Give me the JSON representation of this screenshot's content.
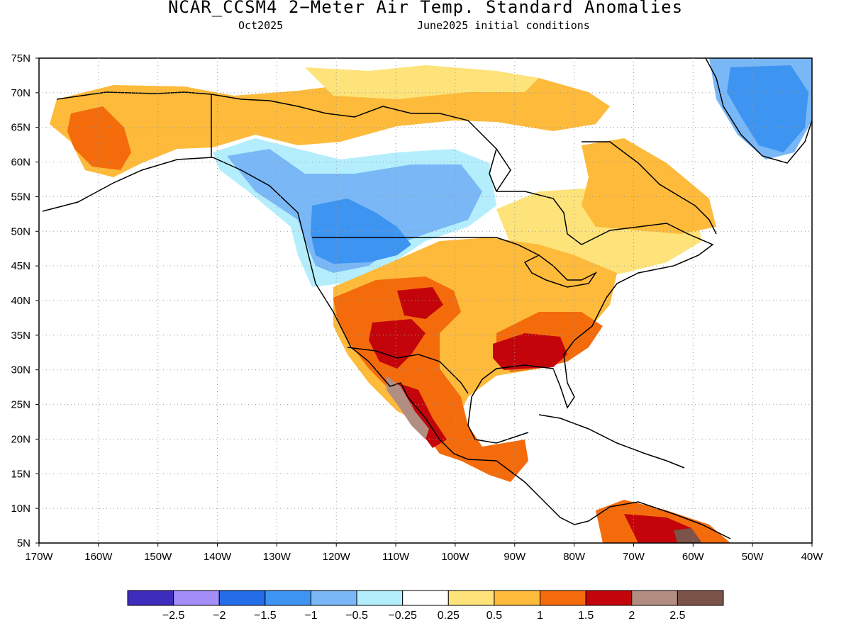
{
  "header": {
    "title": "NCAR_CCSM4 2−Meter Air Temp. Standard Anomalies",
    "valid_month": "Oct2025",
    "initial_conditions": "June2025 initial conditions"
  },
  "map": {
    "lon_range": [
      -170,
      -40
    ],
    "lat_range": [
      5,
      75
    ],
    "grid_lines": "dotted",
    "lat_ticks": [
      "5N",
      "10N",
      "15N",
      "20N",
      "25N",
      "30N",
      "35N",
      "40N",
      "45N",
      "50N",
      "55N",
      "60N",
      "65N",
      "70N",
      "75N"
    ],
    "lon_ticks": [
      "170W",
      "160W",
      "150W",
      "140W",
      "130W",
      "120W",
      "110W",
      "100W",
      "90W",
      "80W",
      "70W",
      "60W",
      "50W",
      "40W"
    ],
    "anomaly_regions": [
      {
        "name": "alaska-warm",
        "level": "0.5–1",
        "color": "#fdba3b"
      },
      {
        "name": "western-alaska-warmer",
        "level": "1–1.5",
        "color": "#f46b0c"
      },
      {
        "name": "canadian-arctic-warm",
        "level": "0.5–1",
        "color": "#fdba3b"
      },
      {
        "name": "western-canada-cool",
        "level": "-1–-0.5",
        "color": "#79b7f6"
      },
      {
        "name": "pacific-northwest-cooler",
        "level": "-1.5–-1",
        "color": "#3e94f1"
      },
      {
        "name": "greenland-cool",
        "level": "-1.5–-1",
        "color": "#3e94f1"
      },
      {
        "name": "eastern-canada-warm",
        "level": "0.5–1",
        "color": "#fdba3b"
      },
      {
        "name": "us-southwest-mexico-warm",
        "level": "1–1.5",
        "color": "#f46b0c"
      },
      {
        "name": "southeast-us-warmest",
        "level": "1.5–2",
        "color": "#c3040b"
      },
      {
        "name": "baja-extreme",
        "level": "2–2.5",
        "color": "#b28d82"
      }
    ]
  },
  "colorbar": {
    "colors": [
      "#3e2cbd",
      "#a38df7",
      "#246de9",
      "#3e94f1",
      "#79b7f6",
      "#b4eefd",
      "#ffffff",
      "#fde37a",
      "#fdba3b",
      "#f46b0c",
      "#c3040b",
      "#b28d82",
      "#7b5349"
    ],
    "labels": [
      "−2.5",
      "−2",
      "−1.5",
      "−1",
      "−0.5",
      "−0.25",
      "0.25",
      "0.5",
      "1",
      "1.5",
      "2",
      "2.5"
    ]
  }
}
